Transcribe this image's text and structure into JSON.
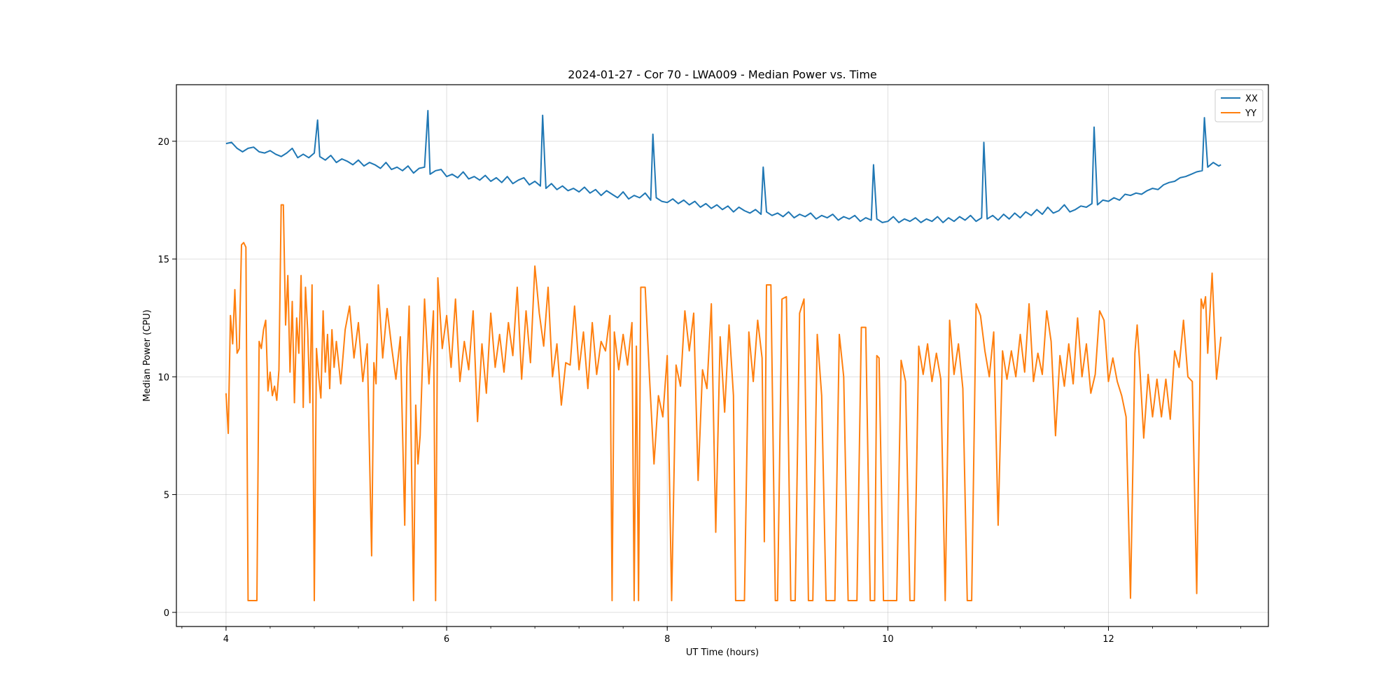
{
  "chart_data": {
    "type": "line",
    "title": "2024-01-27 - Cor 70 - LWA009 - Median Power vs. Time",
    "xlabel": "UT Time (hours)",
    "ylabel": "Median Power (CPU)",
    "xlim": [
      3.55,
      13.45
    ],
    "ylim": [
      -0.6,
      22.4
    ],
    "x_ticks": [
      4,
      6,
      8,
      10,
      12
    ],
    "x_tick_labels": [
      "4",
      "6",
      "8",
      "10",
      "12"
    ],
    "y_ticks": [
      0,
      5,
      10,
      15,
      20
    ],
    "y_tick_labels": [
      "0",
      "5",
      "10",
      "15",
      "20"
    ],
    "grid": true,
    "legend_position": "top-right",
    "series": [
      {
        "name": "XX",
        "color": "#1f77b4",
        "x": [
          4.0,
          4.05,
          4.1,
          4.15,
          4.2,
          4.25,
          4.3,
          4.35,
          4.4,
          4.45,
          4.5,
          4.55,
          4.6,
          4.65,
          4.7,
          4.75,
          4.8,
          4.83,
          4.85,
          4.9,
          4.95,
          5.0,
          5.05,
          5.1,
          5.15,
          5.2,
          5.25,
          5.3,
          5.35,
          5.4,
          5.45,
          5.5,
          5.55,
          5.6,
          5.65,
          5.7,
          5.75,
          5.8,
          5.83,
          5.85,
          5.9,
          5.95,
          6.0,
          6.05,
          6.1,
          6.15,
          6.2,
          6.25,
          6.3,
          6.35,
          6.4,
          6.45,
          6.5,
          6.55,
          6.6,
          6.65,
          6.7,
          6.75,
          6.8,
          6.85,
          6.87,
          6.9,
          6.95,
          7.0,
          7.05,
          7.1,
          7.15,
          7.2,
          7.25,
          7.3,
          7.35,
          7.4,
          7.45,
          7.5,
          7.55,
          7.6,
          7.65,
          7.7,
          7.75,
          7.8,
          7.85,
          7.87,
          7.9,
          7.95,
          8.0,
          8.05,
          8.1,
          8.15,
          8.2,
          8.25,
          8.3,
          8.35,
          8.4,
          8.45,
          8.5,
          8.55,
          8.6,
          8.65,
          8.7,
          8.75,
          8.8,
          8.85,
          8.87,
          8.9,
          8.95,
          9.0,
          9.05,
          9.1,
          9.15,
          9.2,
          9.25,
          9.3,
          9.35,
          9.4,
          9.45,
          9.5,
          9.55,
          9.6,
          9.65,
          9.7,
          9.75,
          9.8,
          9.85,
          9.87,
          9.9,
          9.95,
          10.0,
          10.05,
          10.1,
          10.15,
          10.2,
          10.25,
          10.3,
          10.35,
          10.4,
          10.45,
          10.5,
          10.55,
          10.6,
          10.65,
          10.7,
          10.75,
          10.8,
          10.85,
          10.87,
          10.9,
          10.95,
          11.0,
          11.05,
          11.1,
          11.15,
          11.2,
          11.25,
          11.3,
          11.35,
          11.4,
          11.45,
          11.5,
          11.55,
          11.6,
          11.65,
          11.7,
          11.75,
          11.8,
          11.85,
          11.87,
          11.9,
          11.95,
          12.0,
          12.05,
          12.1,
          12.15,
          12.2,
          12.25,
          12.3,
          12.35,
          12.4,
          12.45,
          12.5,
          12.55,
          12.6,
          12.65,
          12.7,
          12.75,
          12.8,
          12.85,
          12.87,
          12.9,
          12.95,
          13.0,
          13.02
        ],
        "y": [
          19.9,
          19.95,
          19.7,
          19.55,
          19.7,
          19.75,
          19.55,
          19.5,
          19.6,
          19.45,
          19.35,
          19.5,
          19.7,
          19.3,
          19.45,
          19.3,
          19.5,
          20.9,
          19.35,
          19.2,
          19.4,
          19.1,
          19.25,
          19.15,
          19.0,
          19.2,
          18.95,
          19.1,
          19.0,
          18.85,
          19.1,
          18.8,
          18.9,
          18.75,
          18.95,
          18.65,
          18.85,
          18.9,
          21.3,
          18.6,
          18.75,
          18.8,
          18.5,
          18.6,
          18.45,
          18.7,
          18.4,
          18.5,
          18.35,
          18.55,
          18.3,
          18.45,
          18.25,
          18.5,
          18.2,
          18.35,
          18.45,
          18.15,
          18.3,
          18.1,
          21.1,
          18.0,
          18.2,
          17.95,
          18.1,
          17.9,
          18.0,
          17.85,
          18.05,
          17.8,
          17.95,
          17.7,
          17.9,
          17.75,
          17.6,
          17.85,
          17.55,
          17.7,
          17.6,
          17.8,
          17.5,
          20.3,
          17.6,
          17.45,
          17.4,
          17.55,
          17.35,
          17.5,
          17.3,
          17.45,
          17.2,
          17.35,
          17.15,
          17.3,
          17.1,
          17.25,
          17.0,
          17.2,
          17.05,
          16.95,
          17.1,
          16.9,
          18.9,
          17.0,
          16.85,
          16.95,
          16.8,
          17.0,
          16.75,
          16.9,
          16.8,
          16.95,
          16.7,
          16.85,
          16.75,
          16.9,
          16.65,
          16.8,
          16.7,
          16.85,
          16.6,
          16.75,
          16.65,
          19.0,
          16.7,
          16.55,
          16.6,
          16.8,
          16.55,
          16.7,
          16.6,
          16.75,
          16.55,
          16.7,
          16.6,
          16.8,
          16.55,
          16.75,
          16.6,
          16.8,
          16.65,
          16.85,
          16.6,
          16.75,
          19.95,
          16.7,
          16.85,
          16.65,
          16.9,
          16.7,
          16.95,
          16.75,
          17.0,
          16.85,
          17.1,
          16.9,
          17.2,
          16.95,
          17.05,
          17.3,
          17.0,
          17.1,
          17.25,
          17.2,
          17.35,
          20.6,
          17.3,
          17.5,
          17.45,
          17.6,
          17.5,
          17.75,
          17.7,
          17.8,
          17.75,
          17.9,
          18.0,
          17.95,
          18.15,
          18.25,
          18.3,
          18.45,
          18.5,
          18.6,
          18.7,
          18.75,
          21.0,
          18.9,
          19.1,
          18.95,
          19.0
        ]
      },
      {
        "name": "YY",
        "color": "#ff7f0e",
        "x": [
          4.0,
          4.02,
          4.04,
          4.06,
          4.08,
          4.1,
          4.12,
          4.14,
          4.16,
          4.18,
          4.2,
          4.22,
          4.24,
          4.26,
          4.28,
          4.3,
          4.32,
          4.34,
          4.36,
          4.38,
          4.4,
          4.42,
          4.44,
          4.46,
          4.48,
          4.5,
          4.52,
          4.54,
          4.56,
          4.58,
          4.6,
          4.62,
          4.64,
          4.66,
          4.68,
          4.7,
          4.72,
          4.74,
          4.76,
          4.78,
          4.8,
          4.82,
          4.84,
          4.86,
          4.88,
          4.9,
          4.92,
          4.94,
          4.96,
          4.98,
          5.0,
          5.04,
          5.08,
          5.12,
          5.16,
          5.2,
          5.24,
          5.28,
          5.32,
          5.34,
          5.36,
          5.38,
          5.42,
          5.46,
          5.5,
          5.54,
          5.58,
          5.62,
          5.64,
          5.66,
          5.7,
          5.72,
          5.74,
          5.76,
          5.8,
          5.84,
          5.88,
          5.9,
          5.92,
          5.96,
          6.0,
          6.04,
          6.08,
          6.12,
          6.16,
          6.2,
          6.24,
          6.28,
          6.32,
          6.36,
          6.4,
          6.44,
          6.48,
          6.52,
          6.56,
          6.6,
          6.64,
          6.68,
          6.72,
          6.76,
          6.8,
          6.84,
          6.88,
          6.92,
          6.96,
          7.0,
          7.04,
          7.08,
          7.12,
          7.16,
          7.2,
          7.24,
          7.28,
          7.32,
          7.36,
          7.4,
          7.44,
          7.48,
          7.5,
          7.52,
          7.56,
          7.6,
          7.64,
          7.68,
          7.7,
          7.72,
          7.74,
          7.76,
          7.8,
          7.84,
          7.88,
          7.92,
          7.96,
          8.0,
          8.04,
          8.08,
          8.12,
          8.16,
          8.2,
          8.24,
          8.28,
          8.32,
          8.36,
          8.4,
          8.44,
          8.48,
          8.52,
          8.56,
          8.6,
          8.62,
          8.64,
          8.66,
          8.7,
          8.74,
          8.78,
          8.82,
          8.86,
          8.88,
          8.9,
          8.94,
          8.98,
          9.0,
          9.04,
          9.08,
          9.12,
          9.16,
          9.2,
          9.24,
          9.28,
          9.32,
          9.36,
          9.4,
          9.44,
          9.48,
          9.52,
          9.56,
          9.6,
          9.64,
          9.68,
          9.72,
          9.76,
          9.8,
          9.84,
          9.88,
          9.9,
          9.92,
          9.96,
          10.0,
          10.04,
          10.08,
          10.12,
          10.16,
          10.2,
          10.24,
          10.28,
          10.32,
          10.36,
          10.4,
          10.44,
          10.48,
          10.52,
          10.56,
          10.6,
          10.64,
          10.68,
          10.72,
          10.76,
          10.8,
          10.84,
          10.88,
          10.92,
          10.96,
          11.0,
          11.04,
          11.08,
          11.12,
          11.16,
          11.2,
          11.24,
          11.28,
          11.32,
          11.36,
          11.4,
          11.44,
          11.48,
          11.52,
          11.56,
          11.6,
          11.64,
          11.68,
          11.72,
          11.76,
          11.8,
          11.84,
          11.88,
          11.92,
          11.96,
          12.0,
          12.04,
          12.08,
          12.12,
          12.16,
          12.2,
          12.24,
          12.26,
          12.28,
          12.32,
          12.36,
          12.4,
          12.44,
          12.48,
          12.52,
          12.56,
          12.6,
          12.64,
          12.68,
          12.72,
          12.76,
          12.8,
          12.84,
          12.86,
          12.88,
          12.9,
          12.94,
          12.98,
          13.02
        ],
        "y": [
          9.3,
          7.6,
          12.6,
          11.4,
          13.7,
          11.0,
          11.2,
          15.6,
          15.7,
          15.5,
          0.5,
          0.5,
          0.5,
          0.5,
          0.5,
          11.5,
          11.2,
          12.0,
          12.4,
          9.4,
          10.2,
          9.2,
          9.6,
          9.0,
          10.3,
          17.3,
          17.3,
          12.2,
          14.3,
          10.2,
          13.2,
          8.9,
          12.5,
          11.0,
          14.3,
          8.7,
          13.8,
          12.0,
          8.9,
          13.9,
          0.5,
          11.2,
          10.0,
          9.1,
          12.8,
          10.2,
          11.8,
          9.5,
          12.0,
          10.4,
          11.5,
          9.7,
          12.0,
          13.0,
          10.8,
          12.3,
          9.8,
          11.4,
          2.4,
          10.6,
          9.7,
          13.9,
          10.8,
          12.9,
          11.3,
          9.9,
          11.7,
          3.7,
          10.4,
          13.0,
          0.5,
          8.8,
          6.3,
          7.5,
          13.3,
          9.7,
          12.8,
          0.5,
          14.2,
          11.2,
          12.6,
          10.4,
          13.3,
          9.8,
          11.5,
          10.3,
          12.8,
          8.1,
          11.4,
          9.3,
          12.7,
          10.4,
          11.8,
          10.2,
          12.3,
          10.9,
          13.8,
          9.9,
          12.8,
          10.6,
          14.7,
          12.7,
          11.3,
          13.8,
          10.0,
          11.4,
          8.8,
          10.6,
          10.5,
          13.0,
          10.3,
          11.9,
          9.5,
          12.3,
          10.1,
          11.5,
          11.1,
          12.6,
          0.5,
          11.9,
          10.3,
          11.8,
          10.5,
          12.3,
          0.5,
          11.3,
          0.5,
          13.8,
          13.8,
          9.9,
          6.3,
          9.2,
          8.3,
          10.9,
          0.5,
          10.5,
          9.6,
          12.8,
          11.1,
          12.7,
          5.6,
          10.3,
          9.5,
          13.1,
          3.4,
          11.7,
          8.5,
          12.2,
          9.2,
          0.5,
          0.5,
          0.5,
          0.5,
          11.9,
          9.8,
          12.4,
          10.8,
          3.0,
          13.9,
          13.9,
          0.5,
          0.5,
          13.3,
          13.4,
          0.5,
          0.5,
          12.7,
          13.3,
          0.5,
          0.5,
          11.8,
          9.2,
          0.5,
          0.5,
          0.5,
          11.8,
          10.0,
          0.5,
          0.5,
          0.5,
          12.1,
          12.1,
          0.5,
          0.5,
          10.9,
          10.8,
          0.5,
          0.5,
          0.5,
          0.5,
          10.7,
          9.8,
          0.5,
          0.5,
          11.3,
          10.1,
          11.4,
          9.8,
          11.0,
          9.9,
          0.5,
          12.4,
          10.1,
          11.4,
          9.5,
          0.5,
          0.5,
          13.1,
          12.6,
          11.1,
          10.0,
          11.9,
          3.7,
          11.1,
          9.9,
          11.1,
          10.0,
          11.8,
          10.2,
          13.1,
          9.8,
          11.0,
          10.1,
          12.8,
          11.5,
          7.5,
          10.9,
          9.6,
          11.4,
          9.7,
          12.5,
          10.0,
          11.4,
          9.3,
          10.1,
          12.8,
          12.4,
          9.8,
          10.8,
          9.8,
          9.2,
          8.3,
          0.6,
          11.0,
          12.2,
          10.8,
          7.4,
          10.1,
          8.3,
          9.9,
          8.3,
          9.9,
          8.2,
          11.1,
          10.4,
          12.4,
          10.0,
          9.8,
          0.8,
          13.3,
          12.9,
          13.4,
          11.0,
          14.4,
          9.9,
          11.7
        ]
      }
    ]
  }
}
